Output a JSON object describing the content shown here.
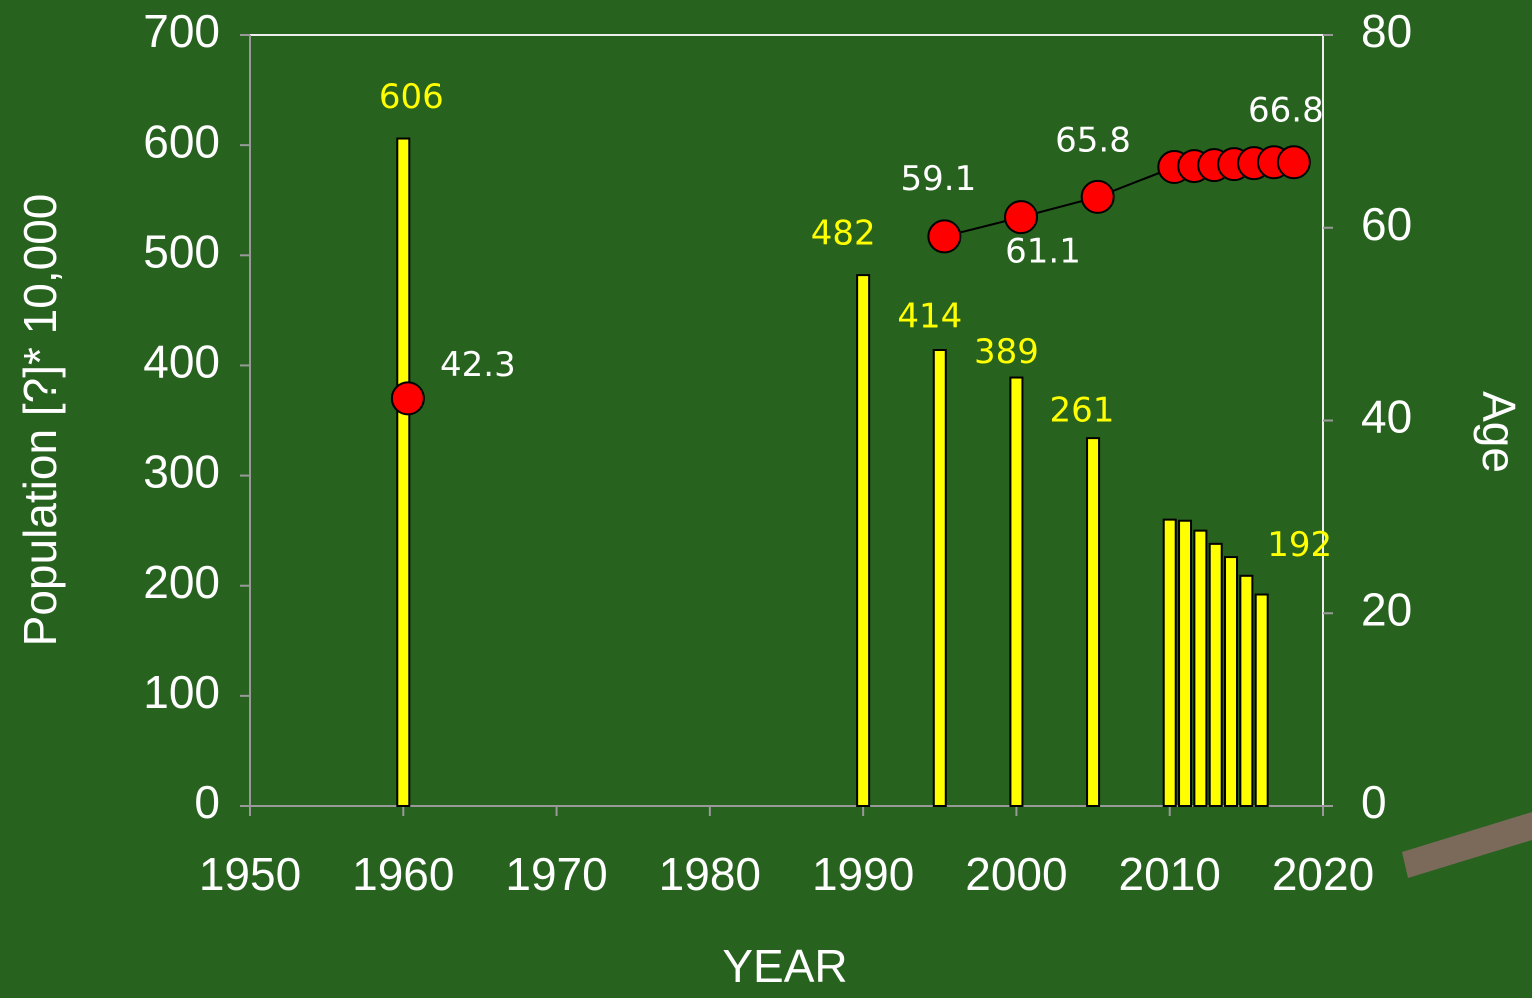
{
  "chart_data": {
    "type": "bar",
    "x": [
      1960,
      1990,
      1995,
      2000,
      2005,
      2010,
      2011,
      2012,
      2013,
      2014,
      2015,
      2016
    ],
    "xlim": [
      1950,
      2020
    ],
    "xticks": [
      1950,
      1960,
      1970,
      1980,
      1990,
      2000,
      2010,
      2020
    ],
    "ylim": [
      0,
      700
    ],
    "yticks": [
      0,
      100,
      200,
      300,
      400,
      500,
      600,
      700
    ],
    "y2lim": [
      0,
      80
    ],
    "y2ticks": [
      0,
      20,
      40,
      60,
      80
    ],
    "xlabel": "YEAR",
    "ylabel": "Population [?]* 10,000",
    "y2label": "Age",
    "annotations": [
      "261",
      "65.8"
    ],
    "series": [
      {
        "type": "bar",
        "color": "#ffff00",
        "values": [
          606,
          482,
          414,
          389,
          334,
          260,
          259,
          250,
          238,
          226,
          209,
          192
        ],
        "value_labels": [
          "606",
          "482",
          "414",
          "389",
          null,
          null,
          null,
          null,
          null,
          null,
          null,
          "192"
        ]
      },
      {
        "type": "line",
        "axis": "y2",
        "color": "#ff0000",
        "values": [
          42.3,
          null,
          59.1,
          61.1,
          63.2,
          66.3,
          66.4,
          66.5,
          66.6,
          66.7,
          66.8,
          66.8
        ],
        "value_labels": [
          "42.3",
          null,
          "59.1",
          "61.1",
          null,
          null,
          null,
          null,
          null,
          null,
          null,
          "66.8"
        ]
      }
    ]
  }
}
